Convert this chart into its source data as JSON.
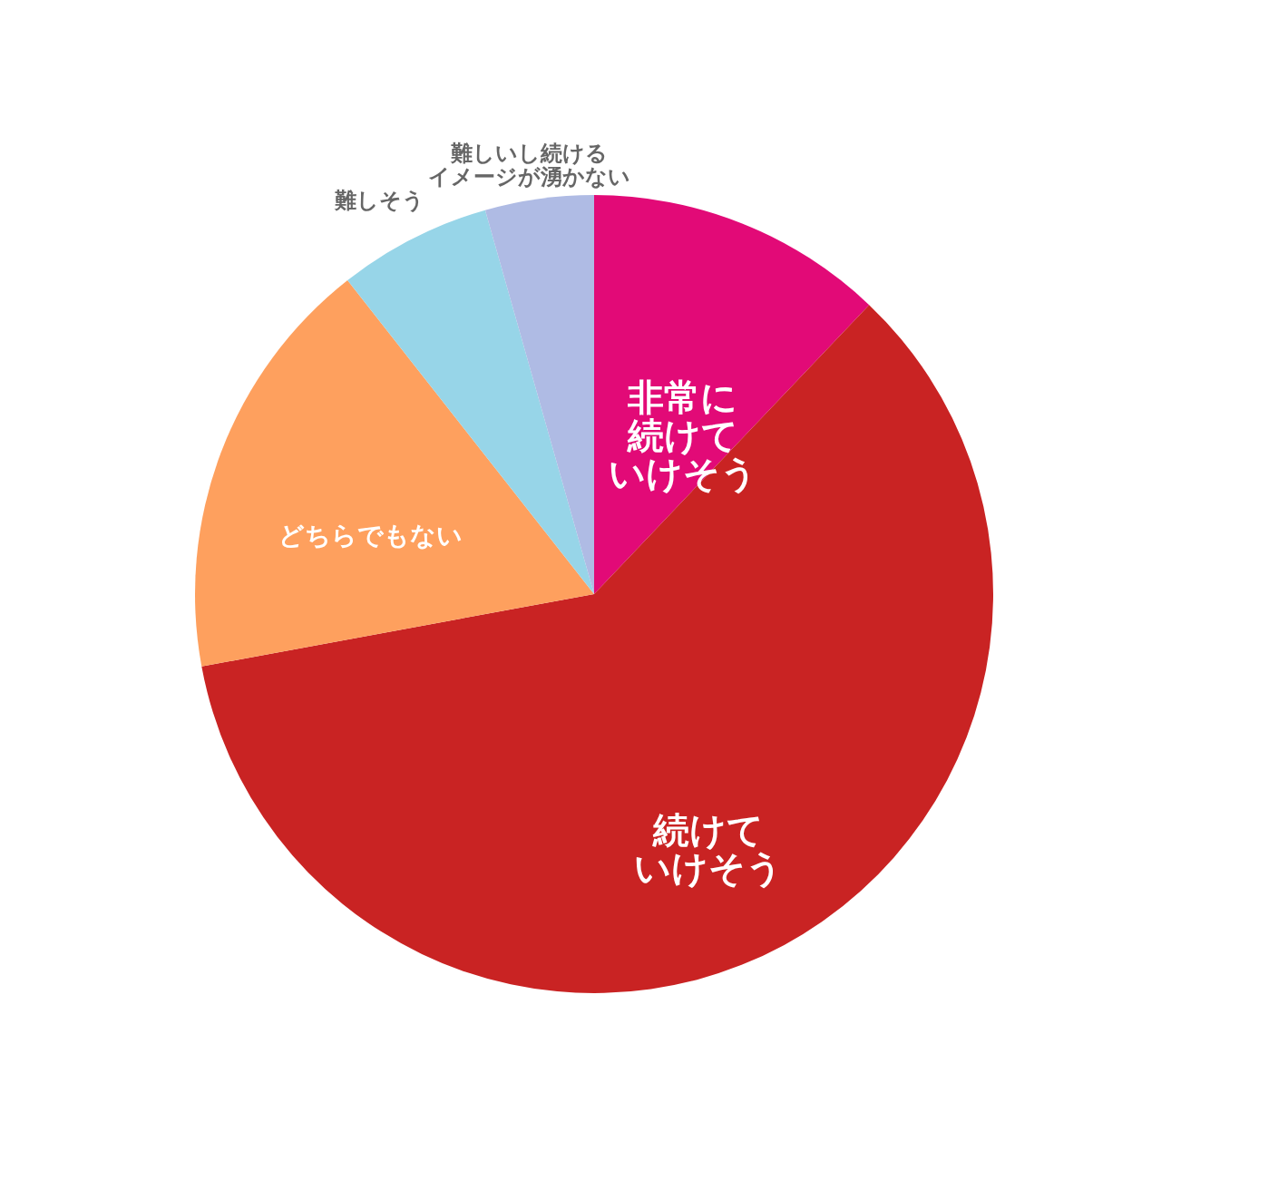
{
  "chart_data": {
    "type": "pie",
    "categories": [
      "非常に続けていけそう",
      "続けていけそう",
      "どちらでもない",
      "難しそう",
      "難しいし続けるイメージが湧かない"
    ],
    "values": [
      12.1,
      60.0,
      17.3,
      6.2,
      4.4
    ],
    "colors": [
      "#e20a77",
      "#c92323",
      "#fea05e",
      "#97d5e8",
      "#afbbe4"
    ],
    "legend": false
  }
}
